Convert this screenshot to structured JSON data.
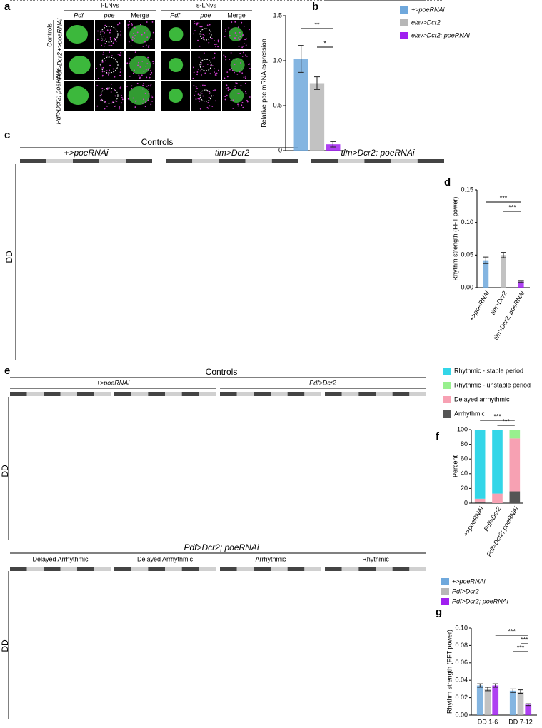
{
  "panel_labels": [
    "a",
    "b",
    "c",
    "d",
    "e",
    "f",
    "g"
  ],
  "panel_a": {
    "groups": [
      "l-LNvs",
      "s-LNvs"
    ],
    "columns": [
      "Pdf",
      "poe",
      "Merge"
    ],
    "row_group": "Controls",
    "rows": [
      "+>poeRNAi",
      "Pdf>Dcr2",
      "Pdf>Dcr2; poeRNAi"
    ]
  },
  "panel_c": {
    "title": "Controls",
    "genotypes": [
      "+>poeRNAi",
      "tim>Dcr2",
      "tim>Dcr2; poeRNAi"
    ],
    "side_label": "DD"
  },
  "panel_e": {
    "title": "Controls",
    "genotypes": [
      "+>poeRNAi",
      "Pdf>Dcr2"
    ],
    "side_label": "DD",
    "lower_title": "Pdf>Dcr2; poeRNAi",
    "lower_labels": [
      "Delayed Arrhythmic",
      "Delayed Arrhythmic",
      "Arrhythmic",
      "Rhythmic"
    ],
    "lower_side_label": "DD"
  },
  "chart_data": [
    {
      "type": "bar",
      "ylabel": "Relative poe mRNA expression",
      "categories": [
        null
      ],
      "series": [
        {
          "name": "+>poeRNAi",
          "color": "#6fa8dc",
          "values": [
            1.02
          ],
          "errors": [
            0.15
          ]
        },
        {
          "name": "elav>Dcr2",
          "color": "#b7b7b7",
          "values": [
            0.75
          ],
          "errors": [
            0.07
          ]
        },
        {
          "name": "elav>Dcr2; poeRNAi",
          "color": "#a020f0",
          "values": [
            0.07
          ],
          "errors": [
            0.03
          ]
        }
      ],
      "ylim": [
        0,
        1.5
      ],
      "yticks": [
        0,
        0.5,
        {
          "value": 1,
          "label": "1.0"
        },
        1.5
      ],
      "significance": [
        "**",
        "*"
      ]
    },
    {
      "type": "bar",
      "ylabel": "Rhythm strength (FFT power)",
      "categories": [
        "+>poeRNAi",
        "tim>Dcr2",
        "tim>Dcr2; poeRNAi"
      ],
      "values": [
        0.042,
        0.05,
        0.009
      ],
      "errors": [
        0.005,
        0.004,
        0.001
      ],
      "colors": [
        "#6fa8dc",
        "#b7b7b7",
        "#a020f0"
      ],
      "ylim": [
        0,
        0.15
      ],
      "yticks": [
        {
          "value": 0,
          "label": "0.00"
        },
        0.05,
        {
          "value": 0.1,
          "label": "0.10"
        },
        0.15
      ],
      "significance": [
        "***",
        "***"
      ]
    },
    {
      "type": "stacked_bar",
      "ylabel": "Percent",
      "categories": [
        "+>poeRNAi",
        "Pdf>Dcr2",
        "Pdf>Dcr2; poeRNAi"
      ],
      "series": [
        {
          "name": "Arrhythmic",
          "color": "#555555",
          "values": [
            2,
            0,
            16
          ]
        },
        {
          "name": "Delayed arrhythmic",
          "color": "#f7a1b3",
          "values": [
            4,
            13,
            72
          ]
        },
        {
          "name": "Rhythmic - unstable period",
          "color": "#98f08e",
          "values": [
            0,
            0,
            12
          ]
        },
        {
          "name": "Rhythmic - stable period",
          "color": "#33d6e8",
          "values": [
            94,
            87,
            0
          ]
        }
      ],
      "ylim": [
        0,
        100
      ],
      "yticks": [
        0,
        20,
        40,
        60,
        80,
        100
      ],
      "significance": [
        "***",
        "***"
      ]
    },
    {
      "type": "bar",
      "ylabel": "Rhythm strength (FFT power)",
      "categories": [
        "DD 1-6",
        "DD 7-12"
      ],
      "series": [
        {
          "name": "+>poeRNAi",
          "color": "#6fa8dc",
          "values": [
            0.034,
            0.028
          ],
          "errors": [
            0.002,
            0.002
          ]
        },
        {
          "name": "Pdf>Dcr2",
          "color": "#b7b7b7",
          "values": [
            0.03,
            0.027
          ],
          "errors": [
            0.002,
            0.002
          ]
        },
        {
          "name": "Pdf>Dcr2; poeRNAi",
          "color": "#a020f0",
          "values": [
            0.034,
            0.012
          ],
          "errors": [
            0.002,
            0.001
          ]
        }
      ],
      "ylim": [
        0,
        0.1
      ],
      "yticks": [
        {
          "value": 0,
          "label": "0.00"
        },
        0.02,
        0.04,
        0.06,
        0.08,
        {
          "value": 0.1,
          "label": "0.10"
        }
      ],
      "significance": [
        "***",
        "***",
        "***"
      ]
    }
  ]
}
